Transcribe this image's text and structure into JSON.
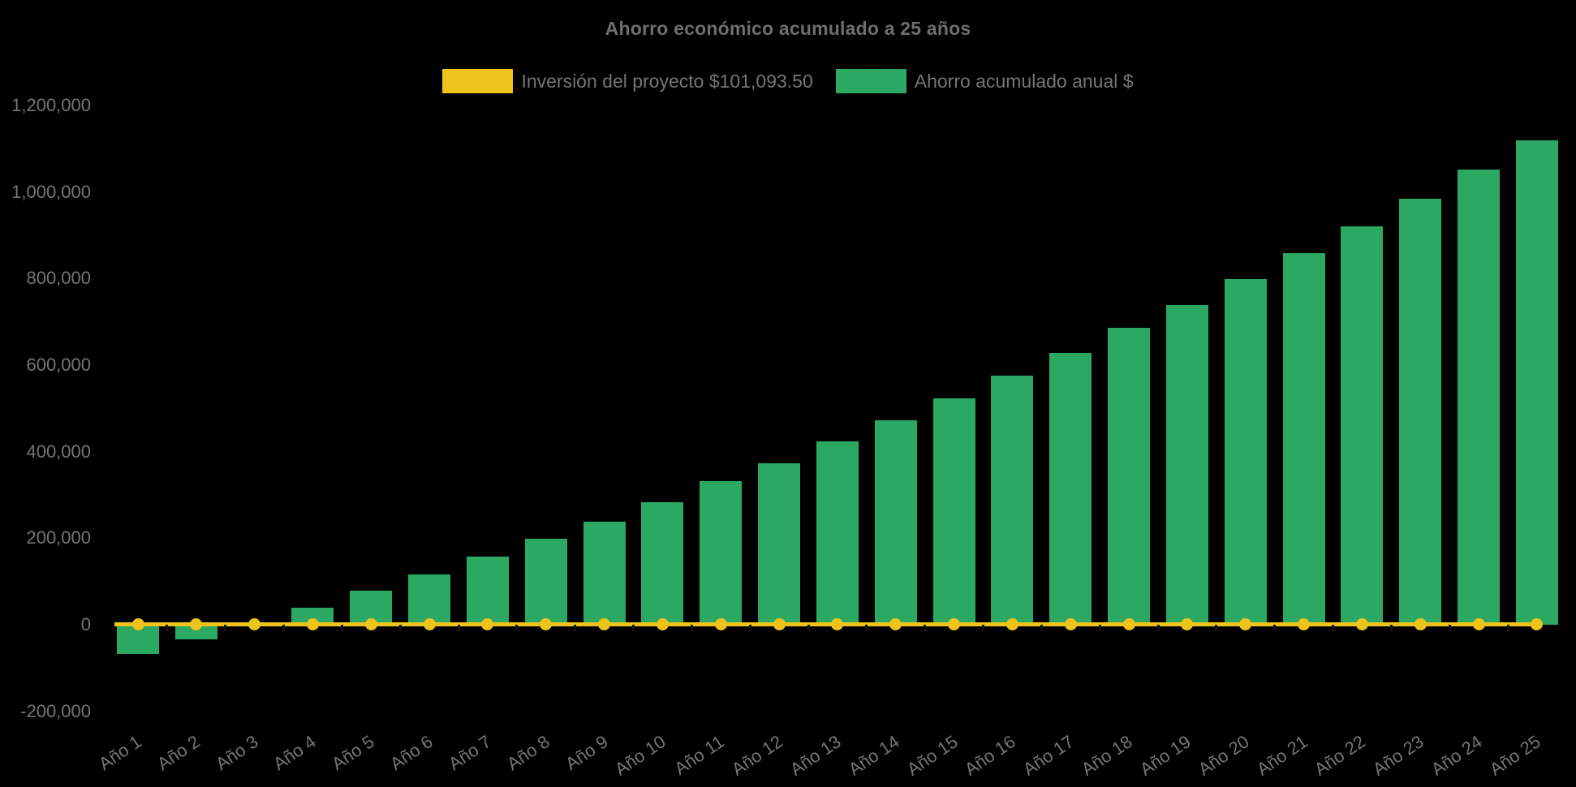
{
  "chart_data": {
    "type": "bar",
    "title": "Ahorro económico acumulado a 25 años",
    "xlabel": "",
    "ylabel": "",
    "categories": [
      "Año 1",
      "Año 2",
      "Año 3",
      "Año 4",
      "Año 5",
      "Año 6",
      "Año 7",
      "Año 8",
      "Año 9",
      "Año 10",
      "Año 11",
      "Año 12",
      "Año 13",
      "Año 14",
      "Año 15",
      "Año 16",
      "Año 17",
      "Año 18",
      "Año 19",
      "Año 20",
      "Año 21",
      "Año 22",
      "Año 23",
      "Año 24",
      "Año 25"
    ],
    "series": [
      {
        "name": "Inversión del proyecto $101,093.50",
        "type": "line",
        "color": "#EDC31C",
        "investment_amount_shown_in_label": 101093.5,
        "values": [
          0,
          0,
          0,
          0,
          0,
          0,
          0,
          0,
          0,
          0,
          0,
          0,
          0,
          0,
          0,
          0,
          0,
          0,
          0,
          0,
          0,
          0,
          0,
          0,
          0
        ]
      },
      {
        "name": "Ahorro acumulado anual $",
        "type": "bar",
        "color": "#2BA962",
        "values": [
          -67000,
          -33000,
          2000,
          39000,
          78000,
          117000,
          157000,
          198000,
          239000,
          284000,
          331000,
          374000,
          424000,
          473000,
          523000,
          575000,
          628000,
          686000,
          739000,
          798000,
          859000,
          921000,
          985000,
          1052000,
          1119000
        ]
      }
    ],
    "ylim": [
      -200000,
      1200000
    ],
    "y_ticks": [
      {
        "value": 1200000,
        "label": "1,200,000"
      },
      {
        "value": 1000000,
        "label": "1,000,000"
      },
      {
        "value": 800000,
        "label": "800,000"
      },
      {
        "value": 600000,
        "label": "600,000"
      },
      {
        "value": 400000,
        "label": "400,000"
      },
      {
        "value": 200000,
        "label": "200,000"
      },
      {
        "value": 0,
        "label": "0"
      },
      {
        "value": -200000,
        "label": "-200,000"
      }
    ],
    "grid": false,
    "legend_position": "top",
    "background_color": "#000000",
    "text_color": "#757575"
  }
}
